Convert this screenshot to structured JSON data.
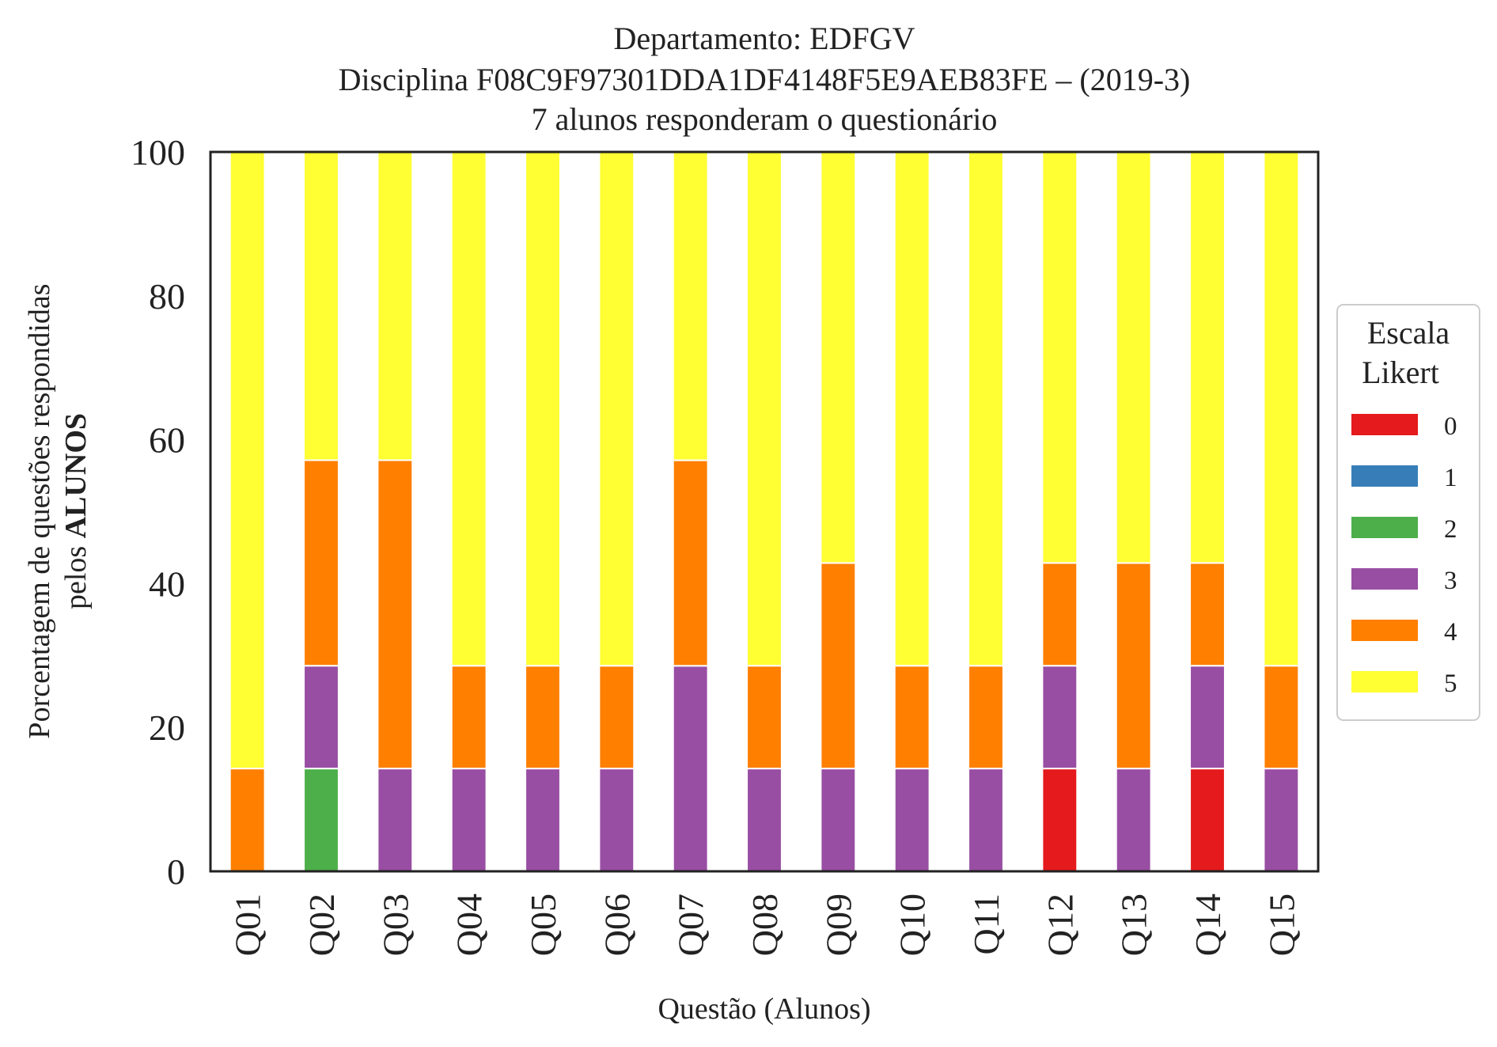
{
  "chart_data": {
    "type": "bar",
    "stacked": true,
    "title_lines": [
      "Departamento: EDFGV",
      "Disciplina F08C9F97301DDA1DF4148F5E9AEB83FE – (2019-3)",
      "7 alunos responderam o questionário"
    ],
    "xlabel": "Questão (Alunos)",
    "ylabel_line1": "Porcentagem de questões respondidas",
    "ylabel_line2_normal": "pelos ",
    "ylabel_line2_bold": "ALUNOS",
    "ylim": [
      0,
      100
    ],
    "yticks": [
      "0",
      "20",
      "40",
      "60",
      "80",
      "100"
    ],
    "grid": false,
    "legend_placement": "center-right outside",
    "legend_title_lines": [
      "Escala",
      "Likert"
    ],
    "categories": [
      "Q01",
      "Q02",
      "Q03",
      "Q04",
      "Q05",
      "Q06",
      "Q07",
      "Q08",
      "Q09",
      "Q10",
      "Q11",
      "Q12",
      "Q13",
      "Q14",
      "Q15"
    ],
    "series": [
      {
        "name": "0",
        "color": "#e41a1c",
        "values": [
          0,
          0,
          0,
          0,
          0,
          0,
          0,
          0,
          0,
          0,
          0,
          14.29,
          0,
          14.29,
          0
        ]
      },
      {
        "name": "1",
        "color": "#377eb8",
        "values": [
          0,
          0,
          0,
          0,
          0,
          0,
          0,
          0,
          0,
          0,
          0,
          0,
          0,
          0,
          0
        ]
      },
      {
        "name": "2",
        "color": "#4daf4a",
        "values": [
          0,
          14.29,
          0,
          0,
          0,
          0,
          0,
          0,
          0,
          0,
          0,
          0,
          0,
          0,
          0
        ]
      },
      {
        "name": "3",
        "color": "#984ea3",
        "values": [
          0,
          14.29,
          14.29,
          14.29,
          14.29,
          14.29,
          28.57,
          14.29,
          14.29,
          14.29,
          14.29,
          14.29,
          14.29,
          14.29,
          14.29
        ]
      },
      {
        "name": "4",
        "color": "#ff7f00",
        "values": [
          14.29,
          28.57,
          42.86,
          14.29,
          14.29,
          14.29,
          28.57,
          14.29,
          28.57,
          14.29,
          14.29,
          14.29,
          28.57,
          14.29,
          14.29
        ]
      },
      {
        "name": "5",
        "color": "#ffff33",
        "values": [
          85.71,
          42.86,
          42.86,
          71.43,
          71.43,
          71.43,
          42.86,
          71.43,
          57.14,
          71.43,
          71.43,
          57.14,
          57.14,
          57.14,
          71.43
        ]
      }
    ]
  }
}
